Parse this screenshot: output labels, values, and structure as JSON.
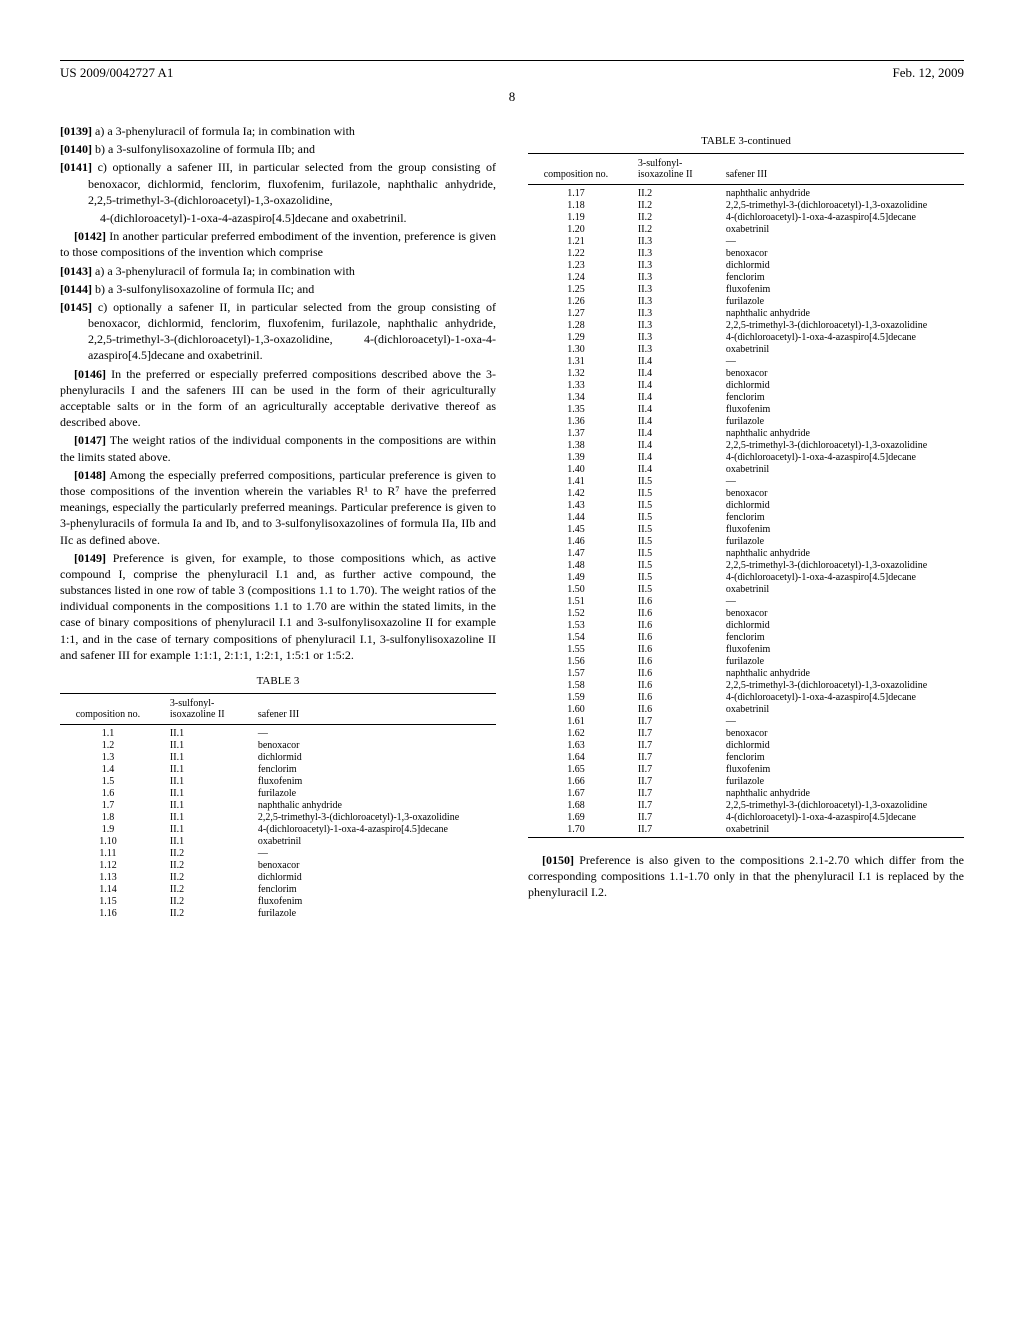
{
  "header": {
    "pub_number": "US 2009/0042727 A1",
    "pub_date": "Feb. 12, 2009",
    "page": "8"
  },
  "left": {
    "p0139_num": "[0139]",
    "p0139": "a) a 3-phenyluracil of formula Ia; in combination with",
    "p0140_num": "[0140]",
    "p0140": "b) a 3-sulfonylisoxazoline of formula IIb; and",
    "p0141_num": "[0141]",
    "p0141": "c) optionally a safener III, in particular selected from the group consisting of benoxacor, dichlormid, fenclorim, fluxofenim, furilazole, naphthalic anhydride, 2,2,5-trimethyl-3-(dichloroacetyl)-1,3-oxazolidine,",
    "p0141b": "4-(dichloroacetyl)-1-oxa-4-azaspiro[4.5]decane and oxabetrinil.",
    "p0142_num": "[0142]",
    "p0142": "In another particular preferred embodiment of the invention, preference is given to those compositions of the invention which comprise",
    "p0143_num": "[0143]",
    "p0143": "a) a 3-phenyluracil of formula Ia; in combination with",
    "p0144_num": "[0144]",
    "p0144": "b) a 3-sulfonylisoxazoline of formula IIc; and",
    "p0145_num": "[0145]",
    "p0145": "c) optionally a safener II, in particular selected from the group consisting of benoxacor, dichlormid, fenclorim, fluxofenim, furilazole, naphthalic anhydride, 2,2,5-trimethyl-3-(dichloroacetyl)-1,3-oxazolidine, 4-(dichloroacetyl)-1-oxa-4-azaspiro[4.5]decane and oxabetrinil.",
    "p0146_num": "[0146]",
    "p0146": "In the preferred or especially preferred compositions described above the 3-phenyluracils I and the safeners III can be used in the form of their agriculturally acceptable salts or in the form of an agriculturally acceptable derivative thereof as described above.",
    "p0147_num": "[0147]",
    "p0147": "The weight ratios of the individual components in the compositions are within the limits stated above.",
    "p0148_num": "[0148]",
    "p0148": "Among the especially preferred compositions, particular preference is given to those compositions of the invention wherein the variables R¹ to R⁷ have the preferred meanings, especially the particularly preferred meanings. Particular preference is given to 3-phenyluracils of formula Ia and Ib, and to 3-sulfonylisoxazolines of formula IIa, IIb and IIc as defined above.",
    "p0149_num": "[0149]",
    "p0149": "Preference is given, for example, to those compositions which, as active compound I, comprise the phenyluracil I.1 and, as further active compound, the substances listed in one row of table 3 (compositions 1.1 to 1.70). The weight ratios of the individual components in the compositions 1.1 to 1.70 are within the stated limits, in the case of binary compositions of phenyluracil I.1 and 3-sulfonylisoxazoline II for example 1:1, and in the case of ternary compositions of phenyluracil I.1, 3-sulfonylisoxazoline II and safener III for example 1:1:1, 2:1:1, 1:2:1, 1:5:1 or 1:5:2."
  },
  "table3": {
    "caption": "TABLE 3",
    "caption_cont": "TABLE 3-continued",
    "h1": "composition no.",
    "h2": "3-sulfonyl-isoxazoline II",
    "h3": "safener III",
    "rows_left": [
      [
        "1.1",
        "II.1",
        "—"
      ],
      [
        "1.2",
        "II.1",
        "benoxacor"
      ],
      [
        "1.3",
        "II.1",
        "dichlormid"
      ],
      [
        "1.4",
        "II.1",
        "fenclorim"
      ],
      [
        "1.5",
        "II.1",
        "fluxofenim"
      ],
      [
        "1.6",
        "II.1",
        "furilazole"
      ],
      [
        "1.7",
        "II.1",
        "naphthalic anhydride"
      ],
      [
        "1.8",
        "II.1",
        "2,2,5-trimethyl-3-(dichloroacetyl)-1,3-oxazolidine"
      ],
      [
        "1.9",
        "II.1",
        "4-(dichloroacetyl)-1-oxa-4-azaspiro[4.5]decane"
      ],
      [
        "1.10",
        "II.1",
        "oxabetrinil"
      ],
      [
        "1.11",
        "II.2",
        "—"
      ],
      [
        "1.12",
        "II.2",
        "benoxacor"
      ],
      [
        "1.13",
        "II.2",
        "dichlormid"
      ],
      [
        "1.14",
        "II.2",
        "fenclorim"
      ],
      [
        "1.15",
        "II.2",
        "fluxofenim"
      ],
      [
        "1.16",
        "II.2",
        "furilazole"
      ]
    ],
    "rows_right": [
      [
        "1.17",
        "II.2",
        "naphthalic anhydride"
      ],
      [
        "1.18",
        "II.2",
        "2,2,5-trimethyl-3-(dichloroacetyl)-1,3-oxazolidine"
      ],
      [
        "1.19",
        "II.2",
        "4-(dichloroacetyl)-1-oxa-4-azaspiro[4.5]decane"
      ],
      [
        "1.20",
        "II.2",
        "oxabetrinil"
      ],
      [
        "1.21",
        "II.3",
        "—"
      ],
      [
        "1.22",
        "II.3",
        "benoxacor"
      ],
      [
        "1.23",
        "II.3",
        "dichlormid"
      ],
      [
        "1.24",
        "II.3",
        "fenclorim"
      ],
      [
        "1.25",
        "II.3",
        "fluxofenim"
      ],
      [
        "1.26",
        "II.3",
        "furilazole"
      ],
      [
        "1.27",
        "II.3",
        "naphthalic anhydride"
      ],
      [
        "1.28",
        "II.3",
        "2,2,5-trimethyl-3-(dichloroacetyl)-1,3-oxazolidine"
      ],
      [
        "1.29",
        "II.3",
        "4-(dichloroacetyl)-1-oxa-4-azaspiro[4.5]decane"
      ],
      [
        "1.30",
        "II.3",
        "oxabetrinil"
      ],
      [
        "1.31",
        "II.4",
        "—"
      ],
      [
        "1.32",
        "II.4",
        "benoxacor"
      ],
      [
        "1.33",
        "II.4",
        "dichlormid"
      ],
      [
        "1.34",
        "II.4",
        "fenclorim"
      ],
      [
        "1.35",
        "II.4",
        "fluxofenim"
      ],
      [
        "1.36",
        "II.4",
        "furilazole"
      ],
      [
        "1.37",
        "II.4",
        "naphthalic anhydride"
      ],
      [
        "1.38",
        "II.4",
        "2,2,5-trimethyl-3-(dichloroacetyl)-1,3-oxazolidine"
      ],
      [
        "1.39",
        "II.4",
        "4-(dichloroacetyl)-1-oxa-4-azaspiro[4.5]decane"
      ],
      [
        "1.40",
        "II.4",
        "oxabetrinil"
      ],
      [
        "1.41",
        "II.5",
        "—"
      ],
      [
        "1.42",
        "II.5",
        "benoxacor"
      ],
      [
        "1.43",
        "II.5",
        "dichlormid"
      ],
      [
        "1.44",
        "II.5",
        "fenclorim"
      ],
      [
        "1.45",
        "II.5",
        "fluxofenim"
      ],
      [
        "1.46",
        "II.5",
        "furilazole"
      ],
      [
        "1.47",
        "II.5",
        "naphthalic anhydride"
      ],
      [
        "1.48",
        "II.5",
        "2,2,5-trimethyl-3-(dichloroacetyl)-1,3-oxazolidine"
      ],
      [
        "1.49",
        "II.5",
        "4-(dichloroacetyl)-1-oxa-4-azaspiro[4.5]decane"
      ],
      [
        "1.50",
        "II.5",
        "oxabetrinil"
      ],
      [
        "1.51",
        "II.6",
        "—"
      ],
      [
        "1.52",
        "II.6",
        "benoxacor"
      ],
      [
        "1.53",
        "II.6",
        "dichlormid"
      ],
      [
        "1.54",
        "II.6",
        "fenclorim"
      ],
      [
        "1.55",
        "II.6",
        "fluxofenim"
      ],
      [
        "1.56",
        "II.6",
        "furilazole"
      ],
      [
        "1.57",
        "II.6",
        "naphthalic anhydride"
      ],
      [
        "1.58",
        "II.6",
        "2,2,5-trimethyl-3-(dichloroacetyl)-1,3-oxazolidine"
      ],
      [
        "1.59",
        "II.6",
        "4-(dichloroacetyl)-1-oxa-4-azaspiro[4.5]decane"
      ],
      [
        "1.60",
        "II.6",
        "oxabetrinil"
      ],
      [
        "1.61",
        "II.7",
        "—"
      ],
      [
        "1.62",
        "II.7",
        "benoxacor"
      ],
      [
        "1.63",
        "II.7",
        "dichlormid"
      ],
      [
        "1.64",
        "II.7",
        "fenclorim"
      ],
      [
        "1.65",
        "II.7",
        "fluxofenim"
      ],
      [
        "1.66",
        "II.7",
        "furilazole"
      ],
      [
        "1.67",
        "II.7",
        "naphthalic anhydride"
      ],
      [
        "1.68",
        "II.7",
        "2,2,5-trimethyl-3-(dichloroacetyl)-1,3-oxazolidine"
      ],
      [
        "1.69",
        "II.7",
        "4-(dichloroacetyl)-1-oxa-4-azaspiro[4.5]decane"
      ],
      [
        "1.70",
        "II.7",
        "oxabetrinil"
      ]
    ]
  },
  "right": {
    "p0150_num": "[0150]",
    "p0150": "Preference is also given to the compositions 2.1-2.70 which differ from the corresponding compositions 1.1-1.70 only in that the phenyluracil I.1 is replaced by the phenyluracil I.2."
  }
}
